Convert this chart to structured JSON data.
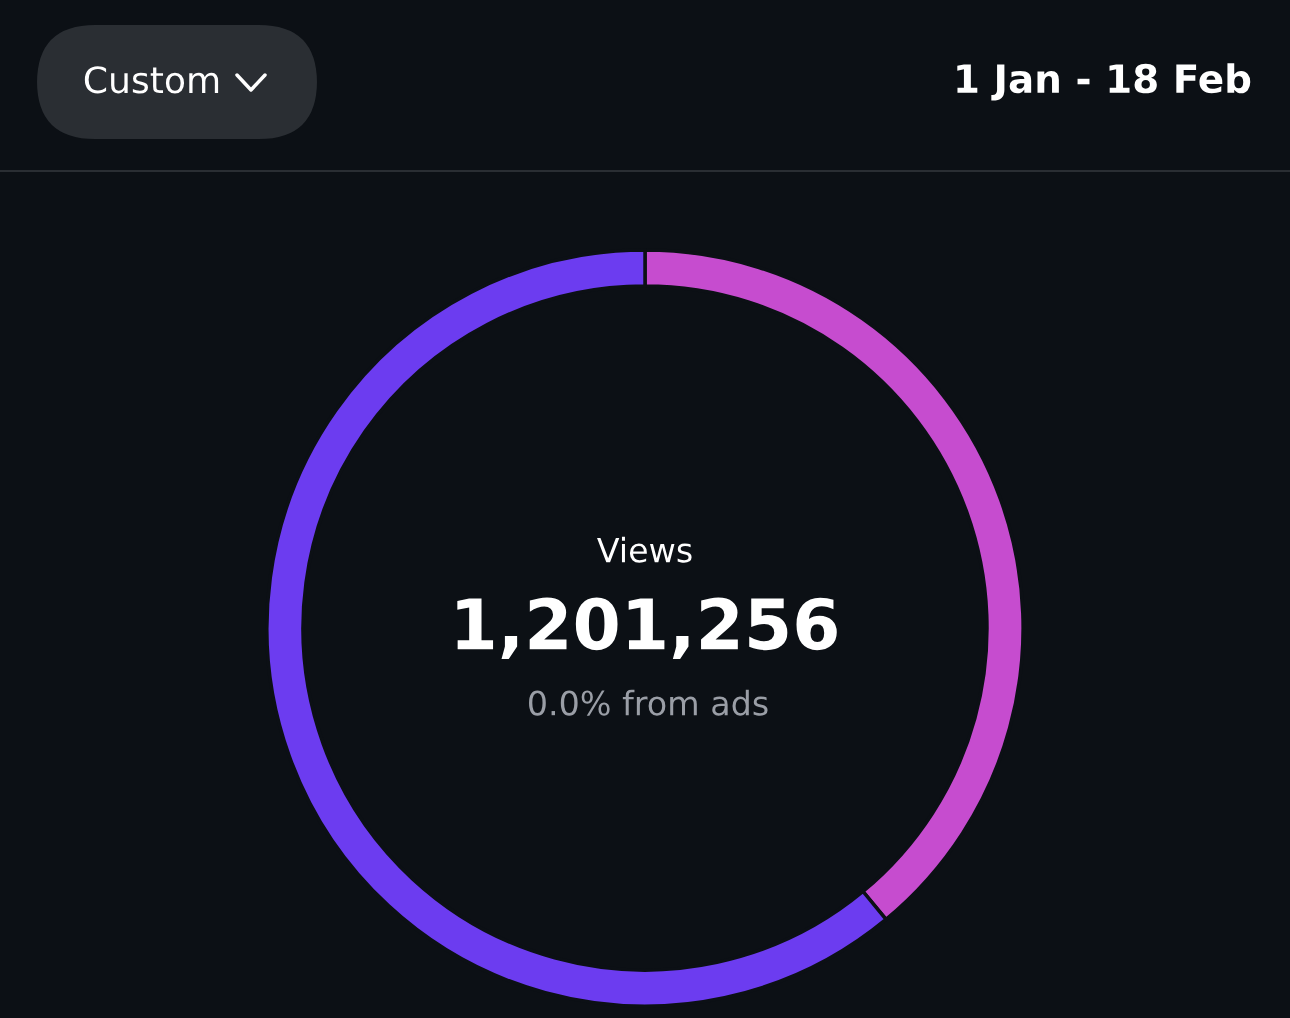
{
  "chart_data": {
    "type": "donut",
    "title": "1 Jan - 18 Feb",
    "categories": [
      null,
      null
    ],
    "values": [
      39,
      61
    ],
    "colors": [
      "#c64ccf",
      "#6c3cf0"
    ],
    "annotations": [
      "Custom",
      "Views",
      "1,201,256",
      "0.0% from ads"
    ]
  }
}
